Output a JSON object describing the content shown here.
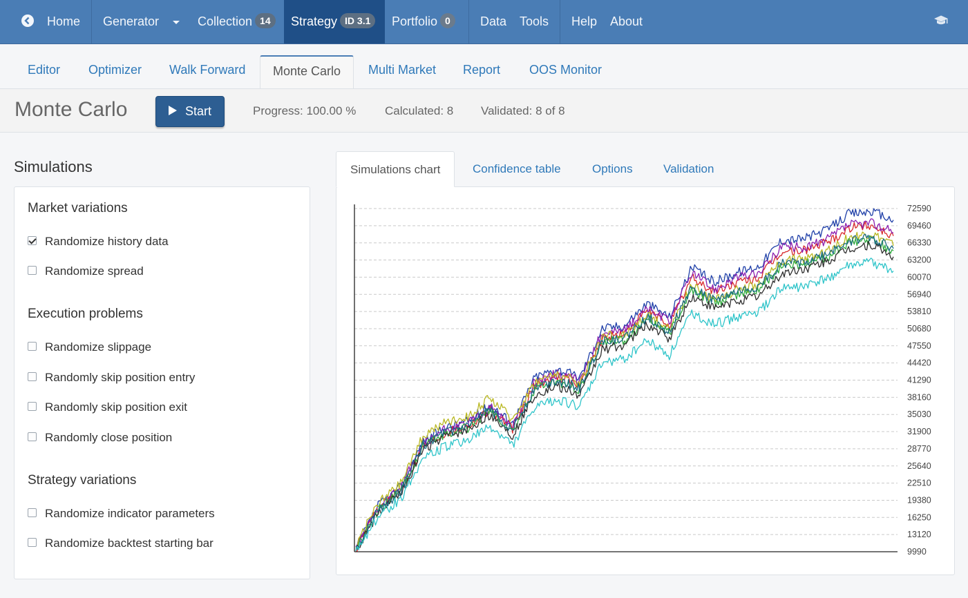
{
  "navbar": {
    "items": [
      {
        "label": "Home"
      },
      {
        "label": "Generator"
      },
      {
        "label": "Collection",
        "badge": "14"
      },
      {
        "label": "Strategy",
        "badge": "ID 3.1"
      },
      {
        "label": "Portfolio",
        "badge": "0"
      },
      {
        "label": "Data"
      },
      {
        "label": "Tools"
      },
      {
        "label": "Help"
      },
      {
        "label": "About"
      }
    ]
  },
  "subtabs": [
    "Editor",
    "Optimizer",
    "Walk Forward",
    "Monte Carlo",
    "Multi Market",
    "Report",
    "OOS Monitor"
  ],
  "header": {
    "title": "Monte Carlo",
    "start_label": "Start",
    "progress": "Progress: 100.00 %",
    "calculated": "Calculated: 8",
    "validated": "Validated: 8 of 8"
  },
  "simulations": {
    "title": "Simulations",
    "groups": [
      {
        "title": "Market variations",
        "options": [
          {
            "label": "Randomize history data",
            "checked": true
          },
          {
            "label": "Randomize spread",
            "checked": false
          }
        ]
      },
      {
        "title": "Execution problems",
        "options": [
          {
            "label": "Randomize slippage",
            "checked": false
          },
          {
            "label": "Randomly skip position entry",
            "checked": false
          },
          {
            "label": "Randomly skip position exit",
            "checked": false
          },
          {
            "label": "Randomly close position",
            "checked": false
          }
        ]
      },
      {
        "title": "Strategy variations",
        "options": [
          {
            "label": "Randomize indicator parameters",
            "checked": false
          },
          {
            "label": "Randomize backtest starting bar",
            "checked": false
          }
        ]
      }
    ]
  },
  "result_tabs": [
    "Simulations chart",
    "Confidence table",
    "Options",
    "Validation"
  ],
  "chart_data": {
    "type": "line",
    "title": "",
    "xlabel": "",
    "ylabel": "",
    "ylim": [
      9990,
      72590
    ],
    "y_ticks": [
      72590,
      69460,
      66330,
      63200,
      60070,
      56940,
      53810,
      50680,
      47550,
      44420,
      41290,
      38160,
      35030,
      31900,
      28770,
      25640,
      22510,
      19380,
      16250,
      13120,
      9990
    ],
    "grid": true,
    "x_points": 25,
    "series": [
      {
        "color": "#1f3fa8",
        "values": [
          10500,
          18400,
          21800,
          30100,
          32600,
          33800,
          36800,
          33400,
          41900,
          43300,
          41800,
          50700,
          51300,
          55300,
          52800,
          61800,
          59200,
          60900,
          62100,
          66800,
          67100,
          68600,
          71600,
          72100,
          70500
        ]
      },
      {
        "color": "#d8282b",
        "values": [
          10300,
          17900,
          21200,
          29300,
          31800,
          33000,
          36000,
          32500,
          40400,
          42000,
          40500,
          48900,
          49800,
          53900,
          51400,
          59900,
          57400,
          59000,
          60000,
          64600,
          65000,
          66300,
          69000,
          69600,
          67600
        ]
      },
      {
        "color": "#8c1fb0",
        "values": [
          10600,
          18200,
          21500,
          29800,
          32300,
          33300,
          36300,
          32900,
          41100,
          42500,
          41100,
          50000,
          50300,
          54300,
          52000,
          60900,
          57900,
          60000,
          60700,
          65700,
          65400,
          66800,
          69600,
          70000,
          68200
        ]
      },
      {
        "color": "#b9b822",
        "values": [
          11200,
          18800,
          22400,
          31200,
          33500,
          34600,
          38100,
          34100,
          41000,
          42400,
          40700,
          49300,
          49600,
          53200,
          50600,
          58500,
          55800,
          57700,
          58600,
          63100,
          63300,
          64900,
          67200,
          67900,
          65800
        ]
      },
      {
        "color": "#2faa3f",
        "values": [
          10400,
          17600,
          21000,
          29100,
          31500,
          32600,
          35700,
          31800,
          39700,
          41000,
          39500,
          48300,
          48600,
          52500,
          49800,
          57800,
          55300,
          56800,
          57800,
          62100,
          62400,
          63700,
          66200,
          66900,
          64900
        ]
      },
      {
        "color": "#2e2e2e",
        "values": [
          9990,
          17100,
          20500,
          28600,
          31000,
          32100,
          35100,
          31100,
          38700,
          40200,
          38400,
          46900,
          47700,
          51500,
          48800,
          56500,
          54300,
          55800,
          56700,
          60700,
          61600,
          62800,
          65200,
          66000,
          63800
        ]
      },
      {
        "color": "#1c6b83",
        "values": [
          10200,
          17500,
          20900,
          29400,
          31700,
          32800,
          35900,
          32300,
          39900,
          41300,
          39800,
          48500,
          48900,
          52900,
          50100,
          58200,
          55800,
          57300,
          58300,
          62500,
          62800,
          64200,
          66700,
          67300,
          65300
        ]
      },
      {
        "color": "#2ec4c9",
        "values": [
          9990,
          16400,
          19600,
          27100,
          29200,
          30300,
          32800,
          29500,
          36300,
          37800,
          36400,
          44500,
          45200,
          48600,
          45900,
          53600,
          51400,
          52800,
          53700,
          58000,
          58400,
          59700,
          62100,
          62700,
          61200
        ]
      }
    ]
  }
}
